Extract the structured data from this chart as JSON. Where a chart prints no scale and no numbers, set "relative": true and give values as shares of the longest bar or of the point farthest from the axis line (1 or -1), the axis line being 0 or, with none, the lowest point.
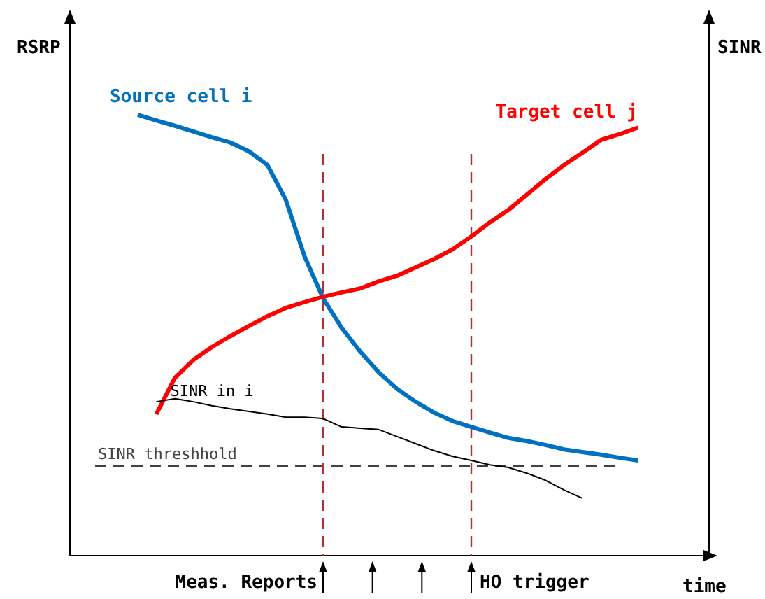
{
  "chart_data": {
    "type": "line",
    "relative": true,
    "ylabel": "RSRP",
    "y2label": "SINR",
    "xlabel": "time",
    "categories": [
      null,
      null,
      null,
      null,
      null,
      null,
      null,
      null,
      null,
      null,
      null,
      null,
      null,
      null,
      null,
      null,
      null,
      null,
      null,
      null,
      null,
      null,
      null,
      null,
      null,
      null,
      null,
      null,
      null
    ],
    "series": [
      {
        "name": "Source cell i",
        "color": "#0070c0",
        "values": [
          1.0,
          0.987,
          0.975,
          0.962,
          0.949,
          0.937,
          0.917,
          0.886,
          0.806,
          0.679,
          0.584,
          0.517,
          0.463,
          0.416,
          0.378,
          0.349,
          0.324,
          0.305,
          0.292,
          0.279,
          0.267,
          0.26,
          0.251,
          0.241,
          0.235,
          0.229,
          0.222,
          0.216,
          null
        ]
      },
      {
        "name": "Target cell j",
        "color": "#ff0000",
        "values": [
          null,
          0.321,
          0.403,
          0.444,
          0.473,
          0.498,
          0.521,
          0.543,
          0.562,
          0.575,
          0.587,
          0.597,
          0.606,
          0.622,
          0.635,
          0.654,
          0.673,
          0.695,
          0.724,
          0.756,
          0.784,
          0.819,
          0.854,
          0.886,
          0.914,
          0.943,
          0.956,
          0.971,
          null
        ]
      },
      {
        "name": "SINR in i",
        "color": "#000000",
        "values": [
          null,
          0.349,
          0.356,
          0.349,
          0.34,
          0.333,
          0.327,
          0.321,
          0.314,
          0.314,
          0.311,
          0.292,
          0.289,
          0.286,
          0.27,
          0.254,
          0.238,
          0.225,
          0.216,
          0.206,
          0.2,
          0.187,
          0.171,
          0.149,
          0.13,
          null,
          null,
          null,
          null
        ]
      }
    ],
    "ref_lines": [
      {
        "axis": "y",
        "value": 0.203,
        "label": "SINR threshhold",
        "color": "#404040",
        "line_style": "dashed"
      }
    ],
    "annotations": [
      "Meas. Reports",
      "HO trigger"
    ]
  }
}
